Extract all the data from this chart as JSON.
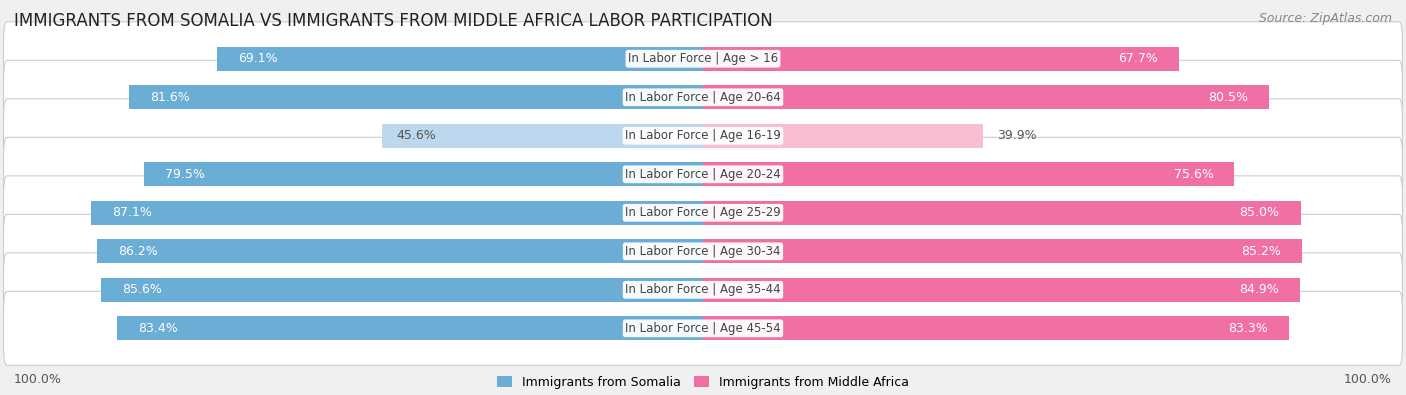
{
  "title": "IMMIGRANTS FROM SOMALIA VS IMMIGRANTS FROM MIDDLE AFRICA LABOR PARTICIPATION",
  "source": "Source: ZipAtlas.com",
  "categories": [
    "In Labor Force | Age > 16",
    "In Labor Force | Age 20-64",
    "In Labor Force | Age 16-19",
    "In Labor Force | Age 20-24",
    "In Labor Force | Age 25-29",
    "In Labor Force | Age 30-34",
    "In Labor Force | Age 35-44",
    "In Labor Force | Age 45-54"
  ],
  "somalia_values": [
    69.1,
    81.6,
    45.6,
    79.5,
    87.1,
    86.2,
    85.6,
    83.4
  ],
  "middle_africa_values": [
    67.7,
    80.5,
    39.9,
    75.6,
    85.0,
    85.2,
    84.9,
    83.3
  ],
  "somalia_color": "#6AAED6",
  "somalia_color_light": "#BDD7EE",
  "middle_africa_color": "#F06FA4",
  "middle_africa_color_light": "#F9BDD4",
  "max_value": 100.0,
  "bg_color": "#f0f0f0",
  "row_bg_color": "#ffffff",
  "label_color_white": "#ffffff",
  "label_color_dark": "#555555",
  "legend_somalia": "Immigrants from Somalia",
  "legend_middle_africa": "Immigrants from Middle Africa",
  "title_fontsize": 12,
  "label_fontsize": 9,
  "category_fontsize": 8.5,
  "footer_fontsize": 9,
  "source_fontsize": 9
}
